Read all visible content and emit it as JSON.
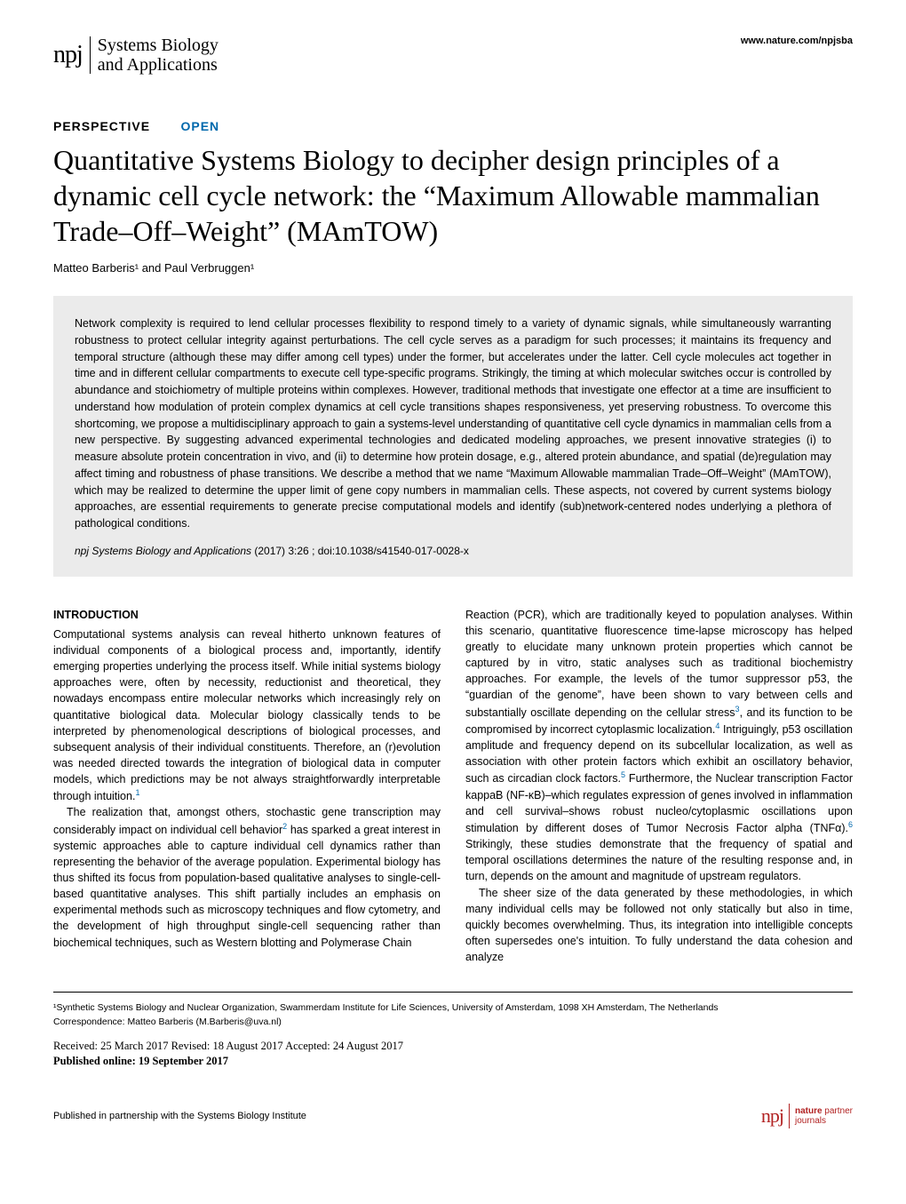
{
  "header": {
    "logo_npj": "npj",
    "logo_journal_line1": "Systems Biology",
    "logo_journal_line2": "and Applications",
    "website": "www.nature.com/npjsba"
  },
  "article": {
    "type": "PERSPECTIVE",
    "open_access": "OPEN",
    "title": "Quantitative Systems Biology to decipher design principles of a dynamic cell cycle network: the “Maximum Allowable mammalian Trade–Off–Weight” (MAmTOW)",
    "authors": "Matteo Barberis¹ and Paul Verbruggen¹"
  },
  "abstract": {
    "text": "Network complexity is required to lend cellular processes flexibility to respond timely to a variety of dynamic signals, while simultaneously warranting robustness to protect cellular integrity against perturbations. The cell cycle serves as a paradigm for such processes; it maintains its frequency and temporal structure (although these may differ among cell types) under the former, but accelerates under the latter. Cell cycle molecules act together in time and in different cellular compartments to execute cell type-specific programs. Strikingly, the timing at which molecular switches occur is controlled by abundance and stoichiometry of multiple proteins within complexes. However, traditional methods that investigate one effector at a time are insufficient to understand how modulation of protein complex dynamics at cell cycle transitions shapes responsiveness, yet preserving robustness. To overcome this shortcoming, we propose a multidisciplinary approach to gain a systems-level understanding of quantitative cell cycle dynamics in mammalian cells from a new perspective. By suggesting advanced experimental technologies and dedicated modeling approaches, we present innovative strategies (i) to measure absolute protein concentration in vivo, and (ii) to determine how protein dosage, e.g., altered protein abundance, and spatial (de)regulation may affect timing and robustness of phase transitions. We describe a method that we name “Maximum Allowable mammalian Trade–Off–Weight” (MAmTOW), which may be realized to determine the upper limit of gene copy numbers in mammalian cells. These aspects, not covered by current systems biology approaches, are essential requirements to generate precise computational models and identify (sub)network-centered nodes underlying a plethora of pathological conditions.",
    "citation_journal": "npj Systems Biology and Applications",
    "citation_year": "(2017)",
    "citation_vol": "3:26",
    "citation_doi": "; doi:10.1038/s41540-017-0028-x"
  },
  "body": {
    "section_heading": "INTRODUCTION",
    "col1_p1": "Computational systems analysis can reveal hitherto unknown features of individual components of a biological process and, importantly, identify emerging properties underlying the process itself. While initial systems biology approaches were, often by necessity, reductionist and theoretical, they nowadays encompass entire molecular networks which increasingly rely on quantitative biological data. Molecular biology classically tends to be interpreted by phenomenological descriptions of biological processes, and subsequent analysis of their individual constituents. Therefore, an (r)evolution was needed directed towards the integration of biological data in computer models, which predictions may be not always straightforwardly interpretable through intuition.",
    "ref1": "1",
    "col1_p2a": "The realization that, amongst others, stochastic gene transcription may considerably impact on individual cell behavior",
    "ref2": "2",
    "col1_p2b": " has sparked a great interest in systemic approaches able to capture individual cell dynamics rather than representing the behavior of the average population. Experimental biology has thus shifted its focus from population-based qualitative analyses to single-cell-based quantitative analyses. This shift partially includes an emphasis on experimental methods such as microscopy techniques and flow cytometry, and the development of high throughput single-cell sequencing rather than biochemical techniques, such as Western blotting and Polymerase Chain",
    "col2_p1a": "Reaction (PCR), which are traditionally keyed to population analyses. Within this scenario, quantitative fluorescence time-lapse microscopy has helped greatly to elucidate many unknown protein properties which cannot be captured by in vitro, static analyses such as traditional biochemistry approaches. For example, the levels of the tumor suppressor p53, the “guardian of the genome”, have been shown to vary between cells and substantially oscillate depending on the cellular stress",
    "ref3": "3",
    "col2_p1b": ", and its function to be compromised by incorrect cytoplasmic localization.",
    "ref4": "4",
    "col2_p1c": " Intriguingly, p53 oscillation amplitude and frequency depend on its subcellular localization, as well as association with other protein factors which exhibit an oscillatory behavior, such as circadian clock factors.",
    "ref5": "5",
    "col2_p1d": " Furthermore, the Nuclear transcription Factor kappaB (NF-κB)–which regulates expression of genes involved in inflammation and cell survival–shows robust nucleo/cytoplasmic oscillations upon stimulation by different doses of Tumor Necrosis Factor alpha (TNFα).",
    "ref6": "6",
    "col2_p1e": " Strikingly, these studies demonstrate that the frequency of spatial and temporal oscillations determines the nature of the resulting response and, in turn, depends on the amount and magnitude of upstream regulators.",
    "col2_p2": "The sheer size of the data generated by these methodologies, in which many individual cells may be followed not only statically but also in time, quickly becomes overwhelming. Thus, its integration into intelligible concepts often supersedes one's intuition. To fully understand the data cohesion and analyze"
  },
  "footer": {
    "affiliation": "¹Synthetic Systems Biology and Nuclear Organization, Swammerdam Institute for Life Sciences, University of Amsterdam, 1098 XH Amsterdam, The Netherlands",
    "correspondence": "Correspondence: Matteo Barberis (M.Barberis@uva.nl)",
    "dates": "Received: 25 March 2017 Revised: 18 August 2017 Accepted: 24 August 2017",
    "pub_online": "Published online: 19 September 2017",
    "partnership": "Published in partnership with the Systems Biology Institute",
    "partner_npj": "npj",
    "partner_nature": "nature",
    "partner_word": " partner",
    "partner_journals": "journals"
  },
  "colors": {
    "open_access": "#0068ac",
    "ref_link": "#0068ac",
    "abstract_bg": "#ebebeb",
    "partner_red": "#b22222"
  }
}
